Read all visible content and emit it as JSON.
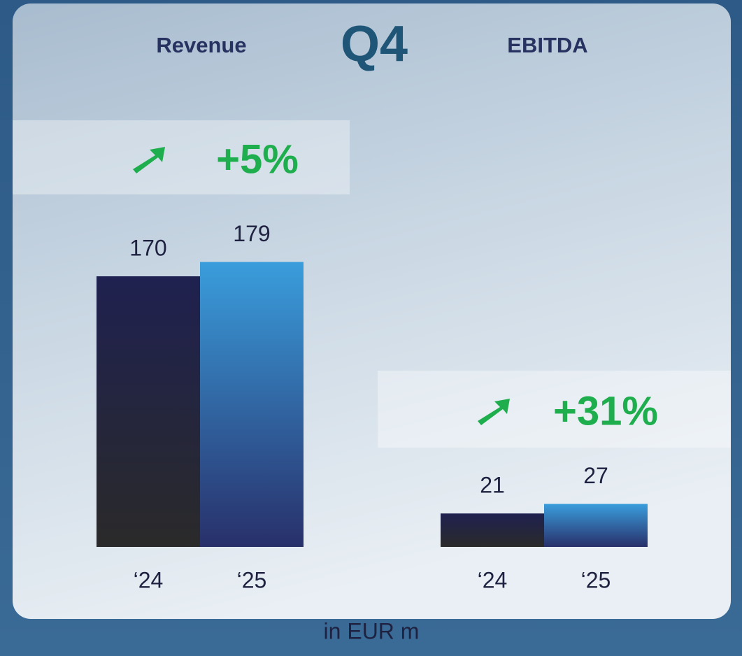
{
  "header": "Q4",
  "footnote": "in EUR m",
  "chart_data": [
    {
      "type": "bar",
      "title": "Revenue",
      "annotation": "+5%",
      "categories": [
        "‘24",
        "‘25"
      ],
      "values": [
        170,
        179
      ],
      "colors": [
        "#1f2150",
        "#3a9ddc"
      ]
    },
    {
      "type": "bar",
      "title": "EBITDA",
      "annotation": "+31%",
      "categories": [
        "‘24",
        "‘25"
      ],
      "values": [
        21,
        27
      ],
      "colors": [
        "#1f2150",
        "#3a9ddc"
      ]
    }
  ]
}
